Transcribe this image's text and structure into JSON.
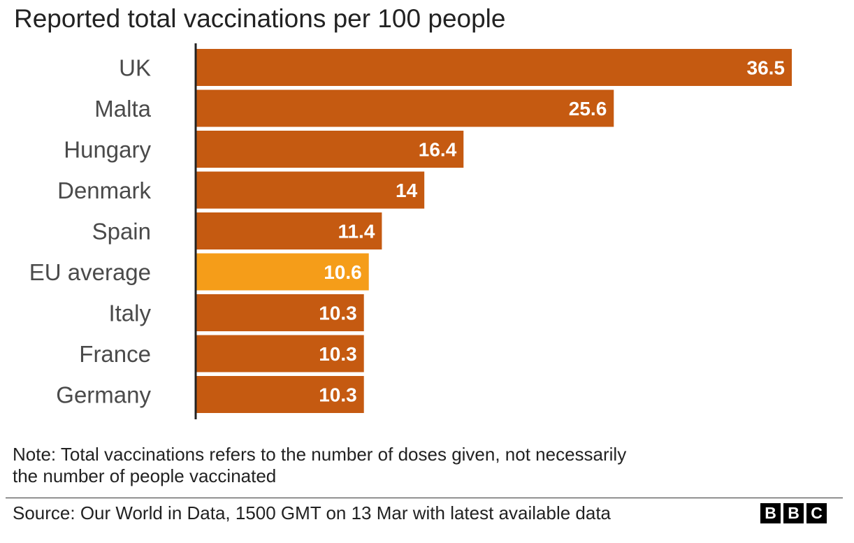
{
  "chart_data": {
    "type": "bar",
    "orientation": "horizontal",
    "title": "Reported total vaccinations per 100 people",
    "categories": [
      "UK",
      "Malta",
      "Hungary",
      "Denmark",
      "Spain",
      "EU average",
      "Italy",
      "France",
      "Germany"
    ],
    "values": [
      36.5,
      25.6,
      16.4,
      14,
      11.4,
      10.6,
      10.3,
      10.3,
      10.3
    ],
    "value_labels": [
      "36.5",
      "25.6",
      "16.4",
      "14",
      "11.4",
      "10.6",
      "10.3",
      "10.3",
      "10.3"
    ],
    "highlight_category": "EU average",
    "colors": {
      "bar": "#c55a11",
      "highlight": "#f59d19",
      "axis": "#222222",
      "category_label": "#4a4a4a",
      "value_label": "#ffffff"
    },
    "xlim": [
      0,
      36.5
    ],
    "grid": false,
    "legend": "none"
  },
  "note": {
    "line1": "Note: Total vaccinations refers to the number of doses given, not necessarily",
    "line2": "the number of people vaccinated"
  },
  "source": "Source: Our World in Data, 1500 GMT on 13 Mar with latest available data",
  "logo": {
    "letters": [
      "B",
      "B",
      "C"
    ]
  }
}
